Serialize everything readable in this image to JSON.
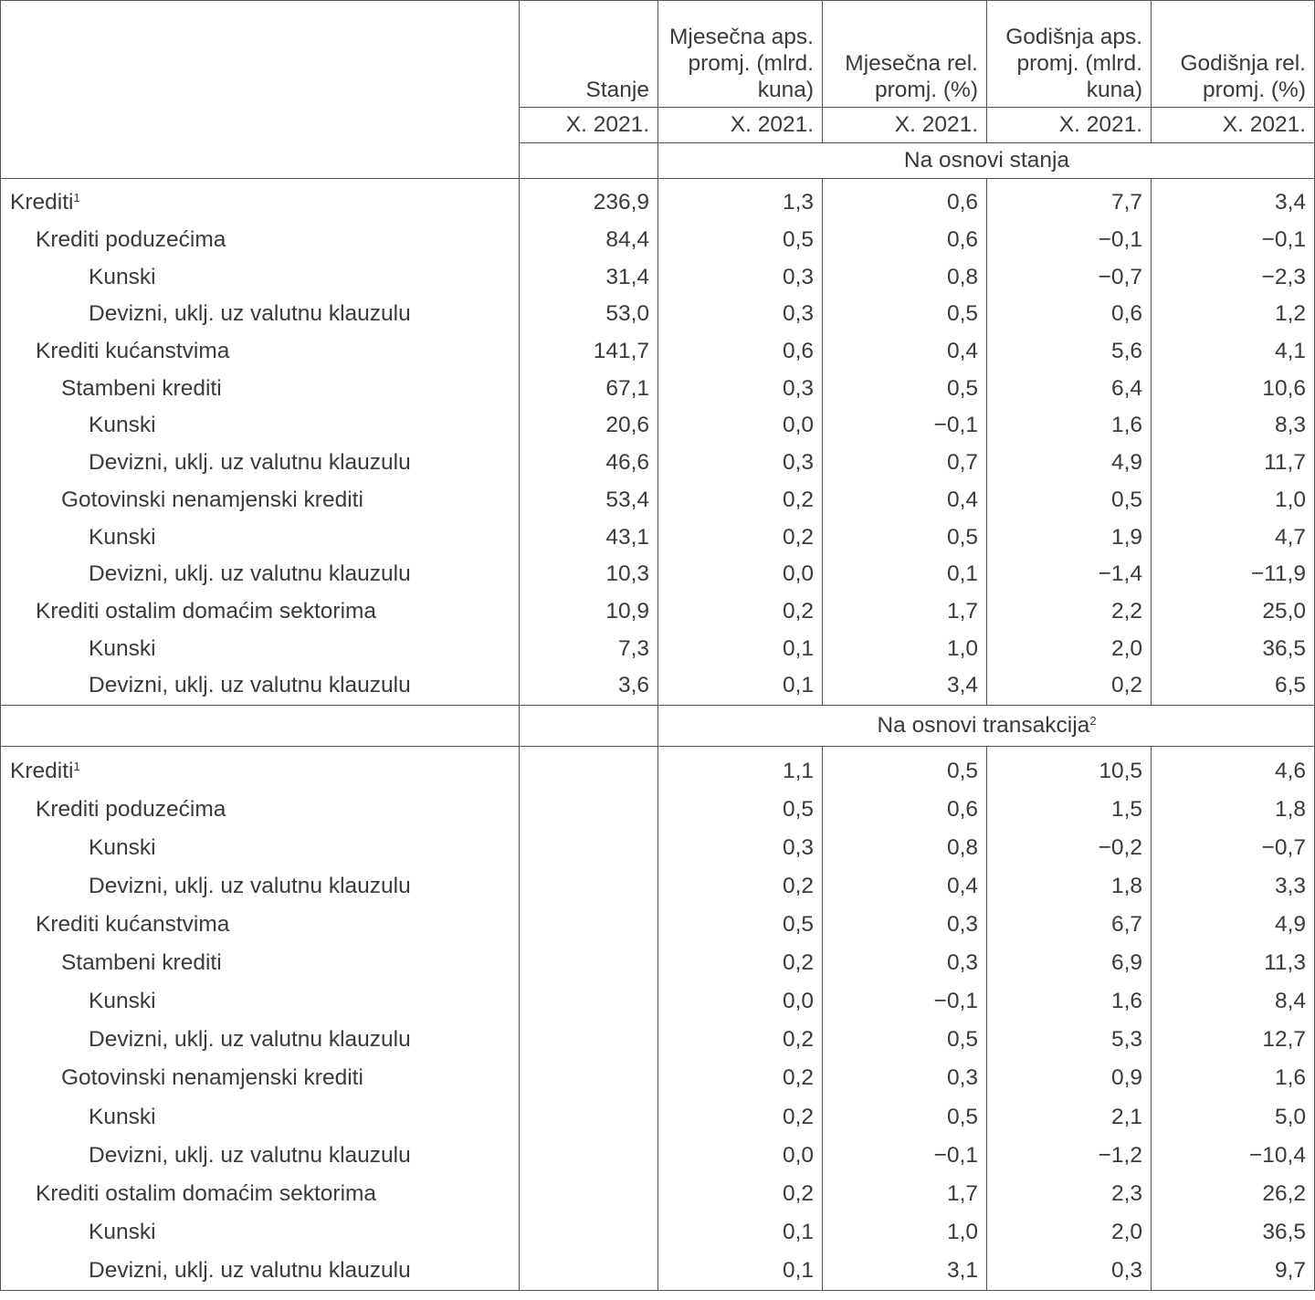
{
  "header": {
    "columns": [
      "Stanje",
      "Mjesečna aps. promj. (mlrd. kuna)",
      "Mjesečna rel. promj. (%)",
      "Godišnja aps. promj. (mlrd. kuna)",
      "Godišnja rel. promj. (%)"
    ],
    "periods": [
      "X. 2021.",
      "X. 2021.",
      "X. 2021.",
      "X. 2021.",
      "X. 2021."
    ]
  },
  "sections": [
    {
      "title": "Na osnovi stanja",
      "title_sup": "",
      "rows": [
        {
          "label": "Krediti",
          "sup": "1",
          "level": 0,
          "values": [
            "236,9",
            "1,3",
            "0,6",
            "7,7",
            "3,4"
          ]
        },
        {
          "label": "Krediti poduzećima",
          "level": 1,
          "values": [
            "84,4",
            "0,5",
            "0,6",
            "−0,1",
            "−0,1"
          ]
        },
        {
          "label": "Kunski",
          "level": 3,
          "values": [
            "31,4",
            "0,3",
            "0,8",
            "−0,7",
            "−2,3"
          ]
        },
        {
          "label": "Devizni, uklj. uz valutnu klauzulu",
          "level": 3,
          "values": [
            "53,0",
            "0,3",
            "0,5",
            "0,6",
            "1,2"
          ]
        },
        {
          "label": "Krediti kućanstvima",
          "level": 1,
          "values": [
            "141,7",
            "0,6",
            "0,4",
            "5,6",
            "4,1"
          ]
        },
        {
          "label": "Stambeni krediti",
          "level": 2,
          "values": [
            "67,1",
            "0,3",
            "0,5",
            "6,4",
            "10,6"
          ]
        },
        {
          "label": "Kunski",
          "level": 3,
          "values": [
            "20,6",
            "0,0",
            "−0,1",
            "1,6",
            "8,3"
          ]
        },
        {
          "label": "Devizni, uklj. uz valutnu klauzulu",
          "level": 3,
          "values": [
            "46,6",
            "0,3",
            "0,7",
            "4,9",
            "11,7"
          ]
        },
        {
          "label": "Gotovinski nenamjenski krediti",
          "level": 2,
          "values": [
            "53,4",
            "0,2",
            "0,4",
            "0,5",
            "1,0"
          ]
        },
        {
          "label": "Kunski",
          "level": 3,
          "values": [
            "43,1",
            "0,2",
            "0,5",
            "1,9",
            "4,7"
          ]
        },
        {
          "label": "Devizni, uklj. uz valutnu klauzulu",
          "level": 3,
          "values": [
            "10,3",
            "0,0",
            "0,1",
            "−1,4",
            "−11,9"
          ]
        },
        {
          "label": "Krediti ostalim domaćim sektorima",
          "level": 1,
          "values": [
            "10,9",
            "0,2",
            "1,7",
            "2,2",
            "25,0"
          ]
        },
        {
          "label": "Kunski",
          "level": 3,
          "values": [
            "7,3",
            "0,1",
            "1,0",
            "2,0",
            "36,5"
          ]
        },
        {
          "label": "Devizni, uklj. uz valutnu klauzulu",
          "level": 3,
          "values": [
            "3,6",
            "0,1",
            "3,4",
            "0,2",
            "6,5"
          ]
        }
      ]
    },
    {
      "title": "Na osnovi transakcija",
      "title_sup": "2",
      "rows": [
        {
          "label": "Krediti",
          "sup": "1",
          "level": 0,
          "values": [
            "",
            "1,1",
            "0,5",
            "10,5",
            "4,6"
          ]
        },
        {
          "label": "Krediti poduzećima",
          "level": 1,
          "values": [
            "",
            "0,5",
            "0,6",
            "1,5",
            "1,8"
          ]
        },
        {
          "label": "Kunski",
          "level": 3,
          "values": [
            "",
            "0,3",
            "0,8",
            "−0,2",
            "−0,7"
          ]
        },
        {
          "label": "Devizni, uklj. uz valutnu klauzulu",
          "level": 3,
          "values": [
            "",
            "0,2",
            "0,4",
            "1,8",
            "3,3"
          ]
        },
        {
          "label": "Krediti kućanstvima",
          "level": 1,
          "values": [
            "",
            "0,5",
            "0,3",
            "6,7",
            "4,9"
          ]
        },
        {
          "label": "Stambeni krediti",
          "level": 2,
          "values": [
            "",
            "0,2",
            "0,3",
            "6,9",
            "11,3"
          ]
        },
        {
          "label": "Kunski",
          "level": 3,
          "values": [
            "",
            "0,0",
            "−0,1",
            "1,6",
            "8,4"
          ]
        },
        {
          "label": "Devizni, uklj. uz valutnu klauzulu",
          "level": 3,
          "values": [
            "",
            "0,2",
            "0,5",
            "5,3",
            "12,7"
          ]
        },
        {
          "label": "Gotovinski nenamjenski krediti",
          "level": 2,
          "values": [
            "",
            "0,2",
            "0,3",
            "0,9",
            "1,6"
          ]
        },
        {
          "label": "Kunski",
          "level": 3,
          "values": [
            "",
            "0,2",
            "0,5",
            "2,1",
            "5,0"
          ]
        },
        {
          "label": "Devizni, uklj. uz valutnu klauzulu",
          "level": 3,
          "values": [
            "",
            "0,0",
            "−0,1",
            "−1,2",
            "−10,4"
          ]
        },
        {
          "label": "Krediti ostalim domaćim sektorima",
          "level": 1,
          "values": [
            "",
            "0,2",
            "1,7",
            "2,3",
            "26,2"
          ]
        },
        {
          "label": "Kunski",
          "level": 3,
          "values": [
            "",
            "0,1",
            "1,0",
            "2,0",
            "36,5"
          ]
        },
        {
          "label": "Devizni, uklj. uz valutnu klauzulu",
          "level": 3,
          "values": [
            "",
            "0,1",
            "3,1",
            "0,3",
            "9,7"
          ]
        }
      ]
    }
  ]
}
